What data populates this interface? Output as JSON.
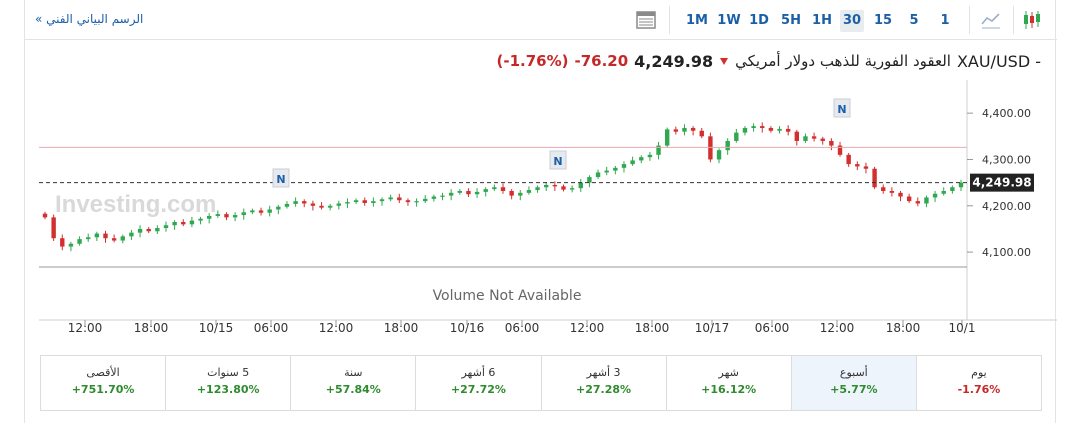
{
  "toolbar": {
    "tech_chart_link": "الرسم البياني الفني »",
    "timeframes": [
      "1M",
      "1W",
      "1D",
      "5H",
      "1H",
      "30",
      "15",
      "5",
      "1"
    ],
    "active_timeframe": "30",
    "icons": [
      "table-icon",
      "line-chart-icon",
      "candlestick-icon"
    ]
  },
  "header": {
    "pair": "XAU/USD -",
    "name": "العقود الفورية للذهب دولار أمريكي",
    "price": "4,249.98",
    "change": "-76.20",
    "change_pct": "(-1.76%)",
    "direction_icon": "down-arrow-icon"
  },
  "watermark": "Investing.com",
  "volume_note": "Volume Not Available",
  "chart_data": {
    "type": "candlestick",
    "y_ticks": [
      "4,400.00",
      "4,300.00",
      "4,200.00",
      "4,100.00"
    ],
    "x_ticks": [
      "12:00",
      "18:00",
      "10/15",
      "06:00",
      "12:00",
      "18:00",
      "10/16",
      "06:00",
      "12:00",
      "18:00",
      "10/17",
      "06:00",
      "12:00",
      "18:00",
      "10/1"
    ],
    "ylim": [
      4070,
      4450
    ],
    "last_price": "4,249.98",
    "last_price_value": 4249.98,
    "reference_line": 4326,
    "news_markers": [
      "N",
      "N",
      "N"
    ],
    "colors": {
      "up": "#2fa84f",
      "down": "#d32f2f"
    },
    "closes": [
      4175,
      4130,
      4112,
      4118,
      4128,
      4132,
      4140,
      4130,
      4125,
      4134,
      4142,
      4150,
      4145,
      4152,
      4158,
      4165,
      4160,
      4168,
      4172,
      4178,
      4182,
      4175,
      4180,
      4186,
      4190,
      4185,
      4192,
      4198,
      4204,
      4210,
      4205,
      4200,
      4196,
      4200,
      4205,
      4208,
      4212,
      4206,
      4210,
      4214,
      4218,
      4212,
      4208,
      4210,
      4215,
      4220,
      4222,
      4228,
      4232,
      4225,
      4230,
      4236,
      4240,
      4232,
      4222,
      4228,
      4234,
      4240,
      4245,
      4242,
      4235,
      4238,
      4250,
      4262,
      4272,
      4276,
      4282,
      4290,
      4298,
      4305,
      4310,
      4330,
      4365,
      4360,
      4368,
      4362,
      4350,
      4300,
      4320,
      4340,
      4358,
      4368,
      4372,
      4368,
      4362,
      4366,
      4360,
      4340,
      4350,
      4345,
      4340,
      4330,
      4310,
      4290,
      4285,
      4280,
      4240,
      4232,
      4228,
      4220,
      4210,
      4205,
      4218,
      4226,
      4232,
      4240,
      4250
    ]
  },
  "performance": [
    {
      "label": "الأقصى",
      "value": "+751.70%",
      "sign": "pos"
    },
    {
      "label": "5 سنوات",
      "value": "+123.80%",
      "sign": "pos"
    },
    {
      "label": "سنة",
      "value": "+57.84%",
      "sign": "pos"
    },
    {
      "label": "6 أشهر",
      "value": "+27.72%",
      "sign": "pos"
    },
    {
      "label": "3 أشهر",
      "value": "+27.28%",
      "sign": "pos"
    },
    {
      "label": "شهر",
      "value": "+16.12%",
      "sign": "pos"
    },
    {
      "label": "أسبوع",
      "value": "+5.77%",
      "sign": "pos",
      "active": true
    },
    {
      "label": "يوم",
      "value": "-1.76%",
      "sign": "neg"
    }
  ]
}
